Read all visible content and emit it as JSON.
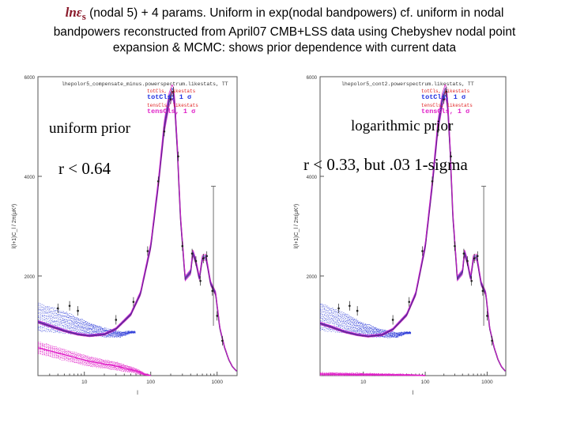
{
  "title": {
    "symbol": "lnε",
    "subscript": "s",
    "line1_rest": " (nodal 5) + 4 params. Uniform in exp(nodal bandpowers) cf. uniform in nodal",
    "line2": "bandpowers reconstructed from April07 CMB+LSS data using Chebyshev nodal point",
    "line3": "expansion & MCMC: shows prior dependence with current data"
  },
  "colors": {
    "tot_line": "#7a1a6a",
    "band_blue": "#2a3ad8",
    "band_magenta": "#e020c8",
    "legend_red": "#e02020",
    "legend_blue": "#2030e0",
    "axis": "#555555"
  },
  "chart_data": [
    {
      "type": "line",
      "header": "lhepolor5_compensate_minus.powerspectrum.likestats, TT",
      "ylabel": "l(l+1)C_l / 2π(μK²)",
      "xlabel": "l",
      "xscale": "log",
      "xlim": [
        2,
        2000
      ],
      "ylim": [
        0,
        6000
      ],
      "x_ticks": [
        "10",
        "100",
        "1000"
      ],
      "y_ticks": [
        "2000",
        "4000",
        "6000"
      ],
      "legend": [
        "totCls, likestats",
        "totCls, 1 σ",
        "tensCls, likestats",
        "tensCls, 1 σ"
      ],
      "annotation_line1": "uniform prior",
      "annotation_line2": "r  < 0.64",
      "tot_x": [
        2,
        3,
        5,
        8,
        12,
        20,
        30,
        50,
        70,
        100,
        130,
        160,
        190,
        210,
        220,
        230,
        250,
        280,
        330,
        400,
        430,
        480,
        540,
        600,
        680,
        800,
        950,
        1100,
        1300,
        1500,
        1700,
        2000
      ],
      "tot_y": [
        1080,
        1000,
        900,
        830,
        800,
        830,
        940,
        1230,
        1650,
        2600,
        3850,
        5000,
        5550,
        5700,
        5650,
        5450,
        4650,
        3200,
        1950,
        2080,
        2480,
        2280,
        1950,
        2360,
        2380,
        1850,
        1650,
        950,
        560,
        320,
        180,
        80
      ],
      "tens_upper": [
        2,
        12,
        32,
        60,
        80,
        100
      ],
      "tens_upper_y": [
        680,
        380,
        260,
        140,
        50,
        0
      ],
      "tens_lower_y": [
        440,
        190,
        110,
        50,
        10,
        0
      ],
      "band_upper_y": [
        1450,
        1280,
        1100,
        950,
        880,
        880
      ],
      "band_lower_y": [
        900,
        860,
        820,
        780,
        780,
        860
      ],
      "band_x": [
        2,
        5,
        10,
        20,
        35,
        50
      ]
    },
    {
      "type": "line",
      "header": "lhepolor5_cont2.powerspectrum.likestats, TT",
      "ylabel": "l(l+1)C_l / 2π(μK²)",
      "xlabel": "l",
      "xscale": "log",
      "xlim": [
        2,
        2000
      ],
      "ylim": [
        0,
        6000
      ],
      "x_ticks": [
        "10",
        "100",
        "1000"
      ],
      "y_ticks": [
        "2000",
        "4000",
        "6000"
      ],
      "legend": [
        "totCls, likestats",
        "totCls, 1 σ",
        "tensCls, likestats",
        "tensCls, 1 σ"
      ],
      "annotation_line1": "logarithmic prior",
      "annotation_line2": "r  < 0.33, but .03 1-sigma",
      "tot_x": [
        2,
        3,
        5,
        8,
        12,
        20,
        30,
        50,
        70,
        100,
        130,
        160,
        190,
        210,
        220,
        230,
        250,
        280,
        330,
        400,
        430,
        480,
        540,
        600,
        680,
        800,
        950,
        1100,
        1300,
        1500,
        1700,
        2000
      ],
      "tot_y": [
        1050,
        980,
        880,
        820,
        790,
        820,
        930,
        1220,
        1640,
        2600,
        3850,
        5000,
        5550,
        5700,
        5650,
        5450,
        4650,
        3200,
        1950,
        2080,
        2480,
        2280,
        1950,
        2360,
        2380,
        1850,
        1650,
        950,
        560,
        320,
        180,
        80
      ],
      "tens_upper": [
        2,
        12,
        32,
        60,
        80,
        100
      ],
      "tens_upper_y": [
        60,
        40,
        30,
        20,
        10,
        0
      ],
      "tens_lower_y": [
        0,
        0,
        0,
        0,
        0,
        0
      ],
      "band_upper_y": [
        1450,
        1250,
        1050,
        920,
        860,
        870
      ],
      "band_lower_y": [
        920,
        860,
        800,
        770,
        770,
        850
      ],
      "band_x": [
        2,
        5,
        10,
        20,
        35,
        50
      ]
    }
  ]
}
